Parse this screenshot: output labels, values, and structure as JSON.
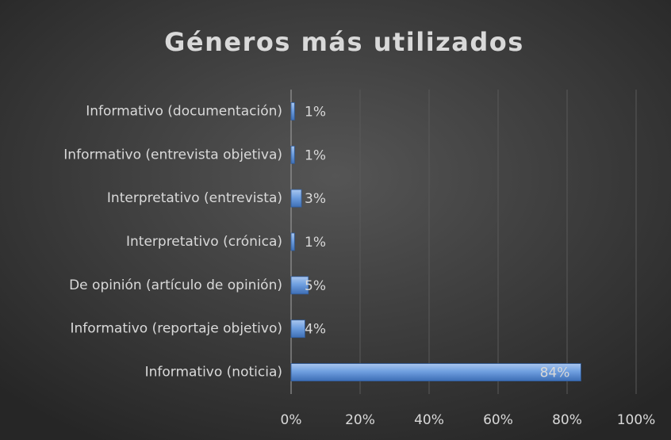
{
  "chart_data": {
    "type": "barh",
    "title": "Géneros más utilizados",
    "categories": [
      "Informativo (documentación)",
      "Informativo (entrevista objetiva)",
      "Interpretativo (entrevista)",
      "Interpretativo (crónica)",
      "De opinión (artículo de opinión)",
      "Informativo (reportaje objetivo)",
      "Informativo (noticia)"
    ],
    "values": [
      1,
      1,
      3,
      1,
      5,
      4,
      84
    ],
    "value_labels": [
      "1%",
      "1%",
      "3%",
      "1%",
      "5%",
      "4%",
      "84%"
    ],
    "color": "#5b8fd6",
    "xlim": [
      0,
      100
    ],
    "xticks": [
      {
        "value": 0,
        "label": "0%"
      },
      {
        "value": 20,
        "label": "20%"
      },
      {
        "value": 40,
        "label": "40%"
      },
      {
        "value": 60,
        "label": "60%"
      },
      {
        "value": 80,
        "label": "80%"
      },
      {
        "value": 100,
        "label": "100%"
      }
    ],
    "grid": true
  }
}
